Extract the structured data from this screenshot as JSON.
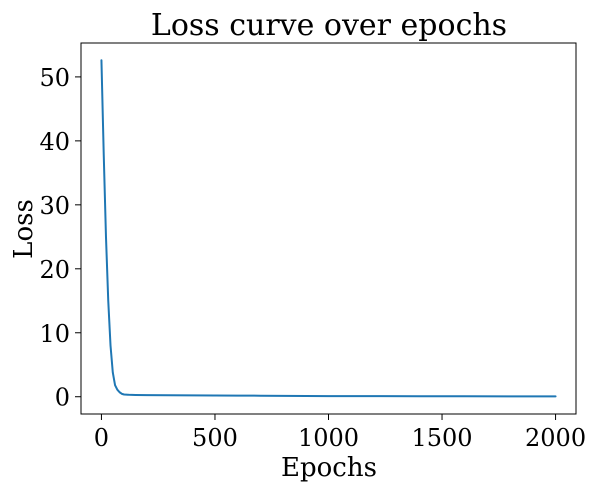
{
  "chart_data": {
    "type": "line",
    "title": "Loss curve over epochs",
    "xlabel": "Epochs",
    "ylabel": "Loss",
    "xlim": [
      -90,
      2090
    ],
    "ylim": [
      -2.7,
      55.3
    ],
    "xticks": [
      0,
      500,
      1000,
      1500,
      2000
    ],
    "xtick_labels": [
      "0",
      "500",
      "1000",
      "1500",
      "2000"
    ],
    "yticks": [
      0,
      10,
      20,
      30,
      40,
      50
    ],
    "ytick_labels": [
      "0",
      "10",
      "20",
      "30",
      "40",
      "50"
    ],
    "grid": false,
    "series": [
      {
        "color": "#1f77b4",
        "x": [
          0,
          10,
          20,
          30,
          40,
          50,
          60,
          70,
          80,
          90,
          100,
          120,
          150,
          200,
          300,
          400,
          500,
          600,
          700,
          800,
          900,
          1000,
          1200,
          1400,
          1600,
          1800,
          2000
        ],
        "y": [
          52.6,
          38,
          25,
          15,
          8,
          3.8,
          1.8,
          1.1,
          0.7,
          0.45,
          0.35,
          0.3,
          0.28,
          0.26,
          0.24,
          0.22,
          0.2,
          0.18,
          0.16,
          0.14,
          0.12,
          0.1,
          0.09,
          0.08,
          0.07,
          0.06,
          0.05
        ]
      }
    ]
  }
}
